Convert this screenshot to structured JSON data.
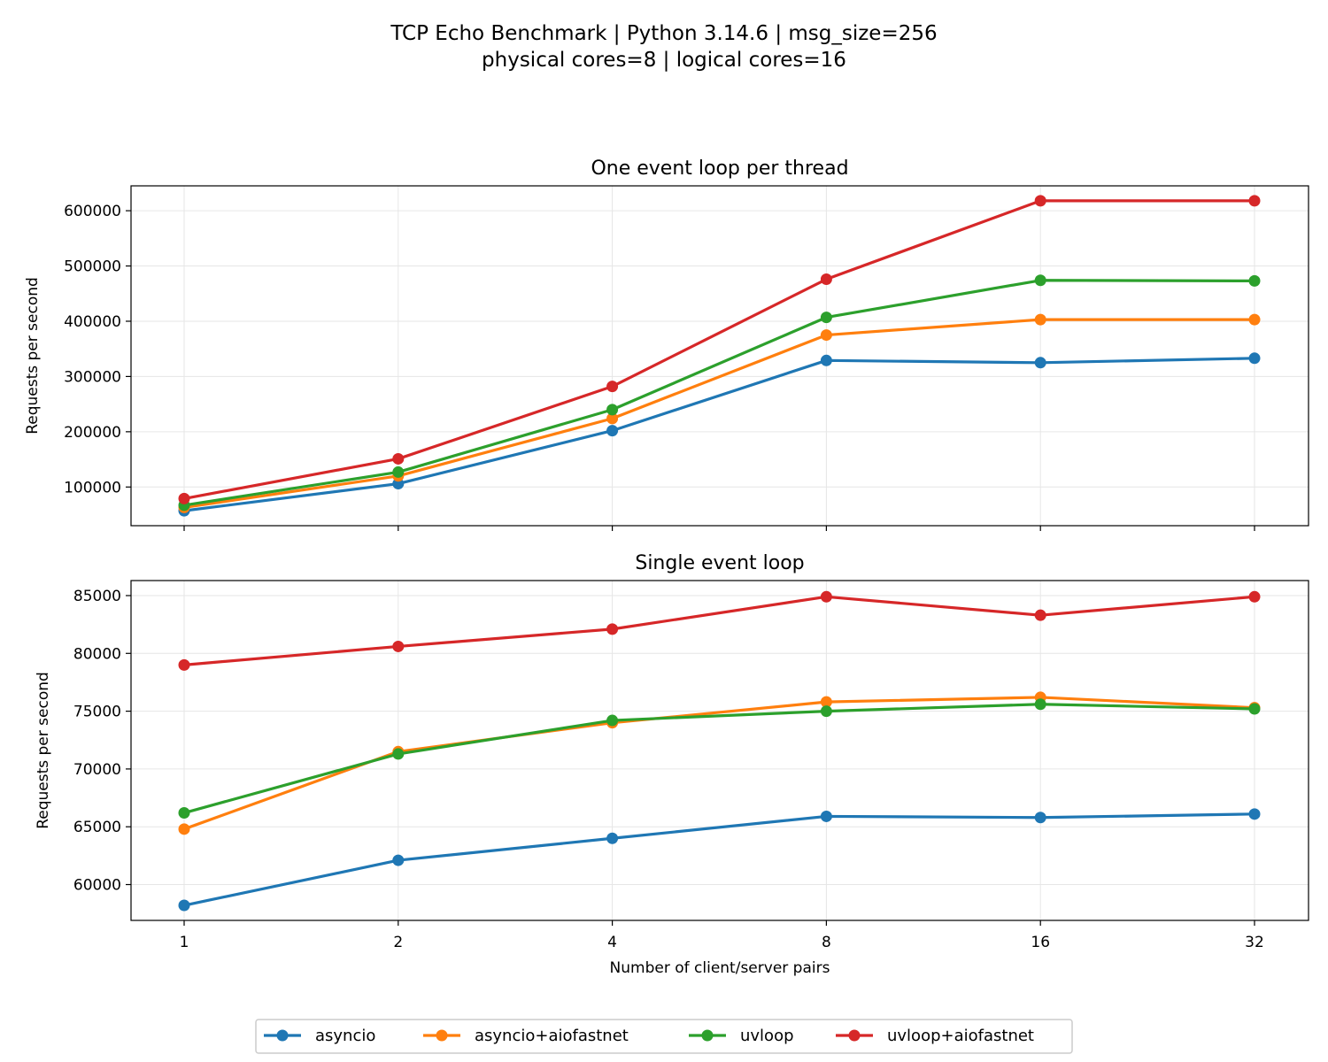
{
  "figure": {
    "title_line1": "TCP Echo Benchmark | Python 3.14.6 | msg_size=256",
    "title_line2": "physical cores=8 | logical cores=16"
  },
  "colors": {
    "asyncio": "#1f77b4",
    "asyncio+aiofastnet": "#ff7f0e",
    "uvloop": "#2ca02c",
    "uvloop+aiofastnet": "#d62728"
  },
  "legend": {
    "placement": "bottom-center",
    "entries": [
      "asyncio",
      "asyncio+aiofastnet",
      "uvloop",
      "uvloop+aiofastnet"
    ]
  },
  "chart_data": [
    {
      "type": "line",
      "title": "One event loop per thread",
      "xlabel": "",
      "ylabel": "Requests per second",
      "x_scale": "log2",
      "categories": [
        1,
        2,
        4,
        8,
        16,
        32
      ],
      "x_tick_labels": [
        "1",
        "2",
        "4",
        "8",
        "16",
        "32"
      ],
      "ylim": [
        30000,
        645000
      ],
      "yticks": [
        100000,
        200000,
        300000,
        400000,
        500000,
        600000
      ],
      "y_tick_labels": [
        "100000",
        "200000",
        "300000",
        "400000",
        "500000",
        "600000"
      ],
      "grid": true,
      "series": [
        {
          "name": "asyncio",
          "values": [
            57000,
            106000,
            202000,
            329000,
            325000,
            333000
          ]
        },
        {
          "name": "asyncio+aiofastnet",
          "values": [
            63000,
            120000,
            224000,
            375000,
            403000,
            403000
          ]
        },
        {
          "name": "uvloop",
          "values": [
            67000,
            127000,
            240000,
            407000,
            474000,
            473000
          ]
        },
        {
          "name": "uvloop+aiofastnet",
          "values": [
            79000,
            151000,
            282000,
            476000,
            618000,
            618000
          ]
        }
      ]
    },
    {
      "type": "line",
      "title": "Single event loop",
      "xlabel": "Number of client/server pairs",
      "ylabel": "Requests per second",
      "x_scale": "log2",
      "categories": [
        1,
        2,
        4,
        8,
        16,
        32
      ],
      "x_tick_labels": [
        "1",
        "2",
        "4",
        "8",
        "16",
        "32"
      ],
      "ylim": [
        56900,
        86300
      ],
      "yticks": [
        60000,
        65000,
        70000,
        75000,
        80000,
        85000
      ],
      "y_tick_labels": [
        "60000",
        "65000",
        "70000",
        "75000",
        "80000",
        "85000"
      ],
      "grid": true,
      "series": [
        {
          "name": "asyncio",
          "values": [
            58200,
            62100,
            64000,
            65900,
            65800,
            66100
          ]
        },
        {
          "name": "asyncio+aiofastnet",
          "values": [
            64800,
            71500,
            74000,
            75800,
            76200,
            75300
          ]
        },
        {
          "name": "uvloop",
          "values": [
            66200,
            71300,
            74200,
            75000,
            75600,
            75200
          ]
        },
        {
          "name": "uvloop+aiofastnet",
          "values": [
            79000,
            80600,
            82100,
            84900,
            83300,
            84900
          ]
        }
      ]
    }
  ]
}
